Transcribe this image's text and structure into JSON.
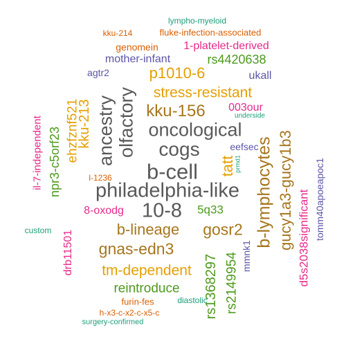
{
  "palette": {
    "gray": "#595959",
    "orange": "#E69F00",
    "blue": "#5B55A8",
    "brown": "#A6761D",
    "green": "#4D9A1C",
    "rust": "#D95F02",
    "teal": "#1B9E77",
    "magenta": "#E7298A"
  },
  "words": [
    {
      "text": "philadelphia-like",
      "color": "gray"
    },
    {
      "text": "b-cell",
      "color": "gray"
    },
    {
      "text": "oncological",
      "color": "gray"
    },
    {
      "text": "cogs",
      "color": "gray"
    },
    {
      "text": "10-8",
      "color": "gray"
    },
    {
      "text": "ancestry",
      "color": "gray"
    },
    {
      "text": "olfactory",
      "color": "gray"
    },
    {
      "text": "b-lymphocytes",
      "color": "brown"
    },
    {
      "text": "gucy1a3-gucy1b3",
      "color": "brown"
    },
    {
      "text": "kku-156",
      "color": "brown"
    },
    {
      "text": "b-lineage",
      "color": "brown"
    },
    {
      "text": "gosr2",
      "color": "brown"
    },
    {
      "text": "gnas-edn3",
      "color": "brown"
    },
    {
      "text": "stress-resistant",
      "color": "orange"
    },
    {
      "text": "p1010-6",
      "color": "orange"
    },
    {
      "text": "tm-dependent",
      "color": "orange"
    },
    {
      "text": "tatt",
      "color": "orange"
    },
    {
      "text": "ehzfznf521",
      "color": "orange"
    },
    {
      "text": "kku-213",
      "color": "orange"
    },
    {
      "text": "rs4420638",
      "color": "green"
    },
    {
      "text": "npr3-c5orf23",
      "color": "green"
    },
    {
      "text": "rs1368297",
      "color": "green"
    },
    {
      "text": "rs2149954",
      "color": "green"
    },
    {
      "text": "reintroduce",
      "color": "green"
    },
    {
      "text": "5q33",
      "color": "green"
    },
    {
      "text": "il-7-independent",
      "color": "magenta"
    },
    {
      "text": "003our",
      "color": "magenta"
    },
    {
      "text": "1-platelet-derived",
      "color": "magenta"
    },
    {
      "text": "8-oxodg",
      "color": "magenta"
    },
    {
      "text": "drb11501",
      "color": "magenta"
    },
    {
      "text": "d5s2038significant",
      "color": "magenta"
    },
    {
      "text": "mother-infant",
      "color": "blue"
    },
    {
      "text": "agtr2",
      "color": "blue"
    },
    {
      "text": "ukall",
      "color": "blue"
    },
    {
      "text": "eefsec",
      "color": "blue"
    },
    {
      "text": "mmnk1",
      "color": "blue"
    },
    {
      "text": "tomm40apoeapoc1",
      "color": "blue"
    },
    {
      "text": "fluke-infection-associated",
      "color": "rust"
    },
    {
      "text": "genomein",
      "color": "rust"
    },
    {
      "text": "kku-214",
      "color": "rust"
    },
    {
      "text": "l-1236",
      "color": "rust"
    },
    {
      "text": "furin-fes",
      "color": "rust"
    },
    {
      "text": "h-x3-c-x2-c-x5-c",
      "color": "rust"
    },
    {
      "text": "lympho-myeloid",
      "color": "teal"
    },
    {
      "text": "underside",
      "color": "teal"
    },
    {
      "text": "prmd1",
      "color": "teal"
    },
    {
      "text": "custom",
      "color": "teal"
    },
    {
      "text": "diastolic",
      "color": "teal"
    },
    {
      "text": "surgery-confirmed",
      "color": "teal"
    }
  ]
}
